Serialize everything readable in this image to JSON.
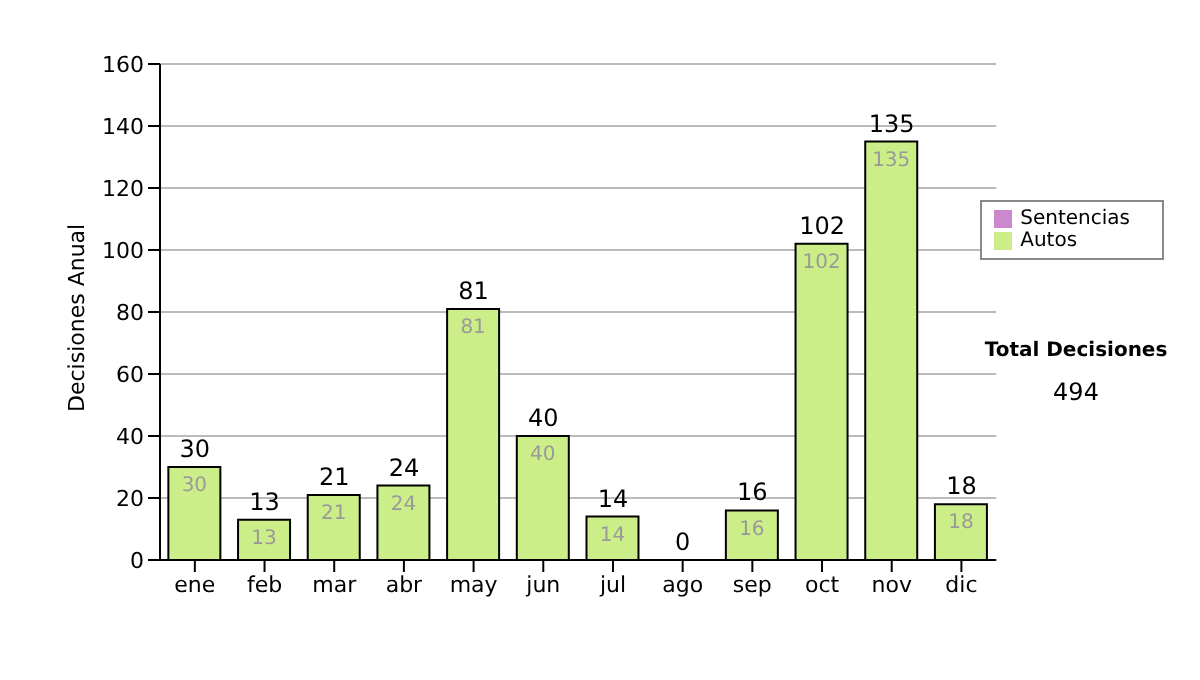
{
  "chart_data": {
    "type": "bar",
    "ylabel": "Decisiones Anual",
    "categories": [
      "ene",
      "feb",
      "mar",
      "abr",
      "may",
      "jun",
      "jul",
      "ago",
      "sep",
      "oct",
      "nov",
      "dic"
    ],
    "series": [
      {
        "name": "Sentencias",
        "color": "#cc88cc",
        "values": [
          0,
          0,
          0,
          0,
          0,
          0,
          0,
          0,
          0,
          0,
          0,
          0
        ]
      },
      {
        "name": "Autos",
        "color": "#ccee88",
        "values": [
          30,
          13,
          21,
          24,
          81,
          40,
          14,
          0,
          16,
          102,
          135,
          18
        ],
        "value_labels": [
          "30",
          "13",
          "21",
          "24",
          "81",
          "40",
          "14",
          null,
          "16",
          "102",
          "135",
          "18"
        ]
      }
    ],
    "stacked": true,
    "totals": [
      "30",
      "13",
      "21",
      "24",
      "81",
      "40",
      "14",
      "0",
      "16",
      "102",
      "135",
      "18"
    ],
    "ylim": [
      0,
      160
    ],
    "yticks": [
      0,
      20,
      40,
      60,
      80,
      100,
      120,
      140,
      160
    ],
    "grid": "y",
    "legend": "right",
    "annotations": [
      "Total Decisiones",
      "494"
    ]
  }
}
